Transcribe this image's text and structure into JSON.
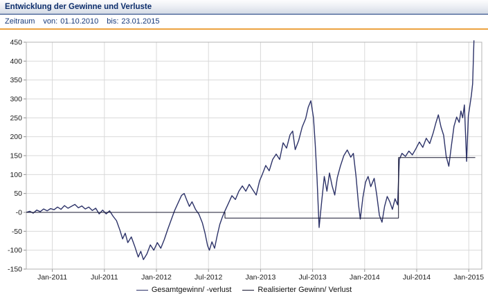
{
  "header": {
    "title": "Entwicklung der Gewinne und Verluste",
    "period_label": "Zeitraum",
    "from_label": "von:",
    "from_value": "01.10.2010",
    "to_label": "bis:",
    "to_value": "23.01.2015"
  },
  "colors": {
    "title_text": "#0c2d6b",
    "header_border": "#16397a",
    "accent_line": "#eca23f",
    "period_text": "#16397a"
  },
  "chart_data": {
    "type": "line",
    "title": "Entwicklung der Gewinne und Verluste",
    "xlabel": "",
    "ylabel": "",
    "x_unit": "months_since_2010-10-01",
    "xlim": [
      0,
      52.5
    ],
    "ylim": [
      -150,
      450
    ],
    "grid": true,
    "legend_position": "bottom",
    "colors": {
      "grid": "#d9d9d9",
      "axis": "#8c8c8c",
      "border": "#b3b3b3",
      "label": "#1a1a1a",
      "background": "#ffffff"
    },
    "x_ticks": [
      {
        "x": 3,
        "label": "Jan-2011"
      },
      {
        "x": 9,
        "label": "Jul-2011"
      },
      {
        "x": 15,
        "label": "Jan-2012"
      },
      {
        "x": 21,
        "label": "Jul-2012"
      },
      {
        "x": 27,
        "label": "Jan-2013"
      },
      {
        "x": 33,
        "label": "Jul-2013"
      },
      {
        "x": 39,
        "label": "Jan-2014"
      },
      {
        "x": 45,
        "label": "Jul-2014"
      },
      {
        "x": 51,
        "label": "Jan-2015"
      }
    ],
    "y_ticks": [
      {
        "v": 450,
        "label": "450"
      },
      {
        "v": 400,
        "label": "400"
      },
      {
        "v": 350,
        "label": "350"
      },
      {
        "v": 300,
        "label": "300"
      },
      {
        "v": 250,
        "label": "250"
      },
      {
        "v": 200,
        "label": "200"
      },
      {
        "v": 150,
        "label": "150"
      },
      {
        "v": 100,
        "label": "100"
      },
      {
        "v": 50,
        "label": "50"
      },
      {
        "v": 0,
        "label": "-0"
      },
      {
        "v": -50,
        "label": "-50"
      },
      {
        "v": -100,
        "label": "-100"
      },
      {
        "v": -150,
        "label": "-150"
      }
    ],
    "series": [
      {
        "name": "Gesamtgewinn/ -verlust",
        "color": "#2c3268",
        "width": 1.4,
        "points": [
          [
            0,
            0
          ],
          [
            0.4,
            3
          ],
          [
            0.8,
            -2
          ],
          [
            1.2,
            6
          ],
          [
            1.6,
            2
          ],
          [
            2,
            9
          ],
          [
            2.4,
            4
          ],
          [
            2.8,
            10
          ],
          [
            3.2,
            7
          ],
          [
            3.6,
            14
          ],
          [
            4,
            8
          ],
          [
            4.4,
            18
          ],
          [
            4.8,
            11
          ],
          [
            5.2,
            16
          ],
          [
            5.6,
            21
          ],
          [
            6,
            12
          ],
          [
            6.4,
            17
          ],
          [
            6.8,
            9
          ],
          [
            7.2,
            14
          ],
          [
            7.6,
            5
          ],
          [
            8,
            11
          ],
          [
            8.4,
            -4
          ],
          [
            8.8,
            6
          ],
          [
            9.2,
            -4
          ],
          [
            9.6,
            4
          ],
          [
            10,
            -10
          ],
          [
            10.4,
            -22
          ],
          [
            10.8,
            -48
          ],
          [
            11.1,
            -70
          ],
          [
            11.4,
            -55
          ],
          [
            11.7,
            -80
          ],
          [
            12.1,
            -65
          ],
          [
            12.5,
            -90
          ],
          [
            12.9,
            -118
          ],
          [
            13.2,
            -103
          ],
          [
            13.5,
            -125
          ],
          [
            13.9,
            -110
          ],
          [
            14.3,
            -86
          ],
          [
            14.7,
            -100
          ],
          [
            15.1,
            -80
          ],
          [
            15.5,
            -95
          ],
          [
            15.9,
            -72
          ],
          [
            16.3,
            -45
          ],
          [
            16.7,
            -20
          ],
          [
            17.1,
            5
          ],
          [
            17.5,
            25
          ],
          [
            17.9,
            45
          ],
          [
            18.2,
            50
          ],
          [
            18.5,
            32
          ],
          [
            18.8,
            16
          ],
          [
            19.1,
            28
          ],
          [
            19.5,
            8
          ],
          [
            19.9,
            -5
          ],
          [
            20.3,
            -28
          ],
          [
            20.6,
            -55
          ],
          [
            20.9,
            -88
          ],
          [
            21.1,
            -100
          ],
          [
            21.4,
            -78
          ],
          [
            21.7,
            -95
          ],
          [
            22,
            -62
          ],
          [
            22.3,
            -32
          ],
          [
            22.6,
            -12
          ],
          [
            22.9,
            4
          ],
          [
            23.3,
            24
          ],
          [
            23.7,
            44
          ],
          [
            24.1,
            34
          ],
          [
            24.5,
            56
          ],
          [
            24.9,
            70
          ],
          [
            25.3,
            56
          ],
          [
            25.7,
            74
          ],
          [
            26.1,
            60
          ],
          [
            26.5,
            46
          ],
          [
            26.9,
            84
          ],
          [
            27.2,
            100
          ],
          [
            27.6,
            124
          ],
          [
            28,
            110
          ],
          [
            28.4,
            140
          ],
          [
            28.8,
            154
          ],
          [
            29.2,
            140
          ],
          [
            29.6,
            184
          ],
          [
            30,
            170
          ],
          [
            30.4,
            205
          ],
          [
            30.7,
            215
          ],
          [
            31,
            166
          ],
          [
            31.4,
            190
          ],
          [
            31.8,
            226
          ],
          [
            32.2,
            248
          ],
          [
            32.5,
            278
          ],
          [
            32.8,
            295
          ],
          [
            33.1,
            250
          ],
          [
            33.3,
            180
          ],
          [
            33.5,
            95
          ],
          [
            33.75,
            -40
          ],
          [
            34.05,
            30
          ],
          [
            34.35,
            95
          ],
          [
            34.65,
            56
          ],
          [
            34.95,
            104
          ],
          [
            35.25,
            70
          ],
          [
            35.55,
            46
          ],
          [
            35.85,
            92
          ],
          [
            36.2,
            122
          ],
          [
            36.6,
            150
          ],
          [
            37,
            165
          ],
          [
            37.4,
            146
          ],
          [
            37.7,
            156
          ],
          [
            38,
            96
          ],
          [
            38.3,
            20
          ],
          [
            38.5,
            -18
          ],
          [
            38.8,
            40
          ],
          [
            39.1,
            80
          ],
          [
            39.4,
            95
          ],
          [
            39.7,
            68
          ],
          [
            40.1,
            90
          ],
          [
            40.4,
            46
          ],
          [
            40.7,
            -8
          ],
          [
            41,
            -26
          ],
          [
            41.3,
            16
          ],
          [
            41.6,
            42
          ],
          [
            41.9,
            28
          ],
          [
            42.2,
            8
          ],
          [
            42.5,
            36
          ],
          [
            42.8,
            20
          ],
          [
            43,
            140
          ],
          [
            43.3,
            156
          ],
          [
            43.7,
            148
          ],
          [
            44.1,
            162
          ],
          [
            44.5,
            152
          ],
          [
            44.9,
            168
          ],
          [
            45.3,
            186
          ],
          [
            45.7,
            172
          ],
          [
            46.1,
            196
          ],
          [
            46.5,
            182
          ],
          [
            46.9,
            210
          ],
          [
            47.2,
            236
          ],
          [
            47.5,
            258
          ],
          [
            47.8,
            226
          ],
          [
            48.1,
            204
          ],
          [
            48.4,
            148
          ],
          [
            48.7,
            122
          ],
          [
            49,
            176
          ],
          [
            49.3,
            228
          ],
          [
            49.6,
            252
          ],
          [
            49.9,
            238
          ],
          [
            50.1,
            268
          ],
          [
            50.3,
            250
          ],
          [
            50.5,
            284
          ],
          [
            50.75,
            135
          ],
          [
            50.95,
            255
          ],
          [
            51.15,
            286
          ],
          [
            51.3,
            310
          ],
          [
            51.45,
            340
          ],
          [
            51.6,
            455
          ]
        ]
      },
      {
        "name": "Realisierter Gewinn/ Verlust",
        "color": "#15152e",
        "width": 1,
        "points": [
          [
            0,
            0
          ],
          [
            22.9,
            0
          ],
          [
            22.9,
            -15
          ],
          [
            42.9,
            -15
          ],
          [
            42.9,
            145
          ],
          [
            51.75,
            145
          ]
        ]
      }
    ]
  }
}
